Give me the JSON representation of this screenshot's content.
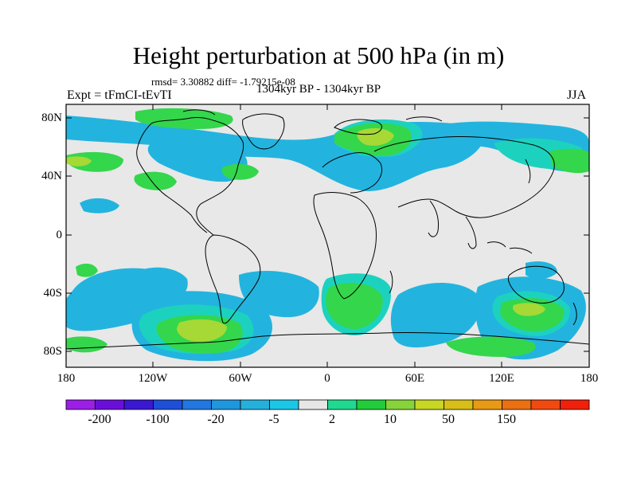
{
  "header": {
    "title": "Height perturbation at 500 hPa (in m)",
    "stats": "rmsd= 3.30882 diff= -1.79215e-08",
    "subtitle": "1304kyr BP - 1304kyr BP",
    "left_label": "Expt = tFmCI-tEvTI",
    "right_label": "JJA"
  },
  "map": {
    "lat_labels": [
      "80N",
      "40N",
      "0",
      "40S",
      "80S"
    ],
    "lon_labels": [
      "180",
      "120W",
      "60W",
      "0",
      "60E",
      "120E",
      "180"
    ],
    "background_color": "#e8e8e8"
  },
  "colorbar": {
    "labels": [
      "-200",
      "-100",
      "-20",
      "-5",
      "2",
      "10",
      "50",
      "150"
    ],
    "colors": [
      "#9b1fe6",
      "#6a0fd9",
      "#3a18d1",
      "#1d4fd8",
      "#2277e0",
      "#1e97dc",
      "#25b0dc",
      "#1cc6e6",
      "#e6e6e6",
      "#20d890",
      "#22cc3a",
      "#86d43a",
      "#c8d624",
      "#d8be18",
      "#e89a14",
      "#ea7012",
      "#f04a10",
      "#f0200a"
    ]
  }
}
